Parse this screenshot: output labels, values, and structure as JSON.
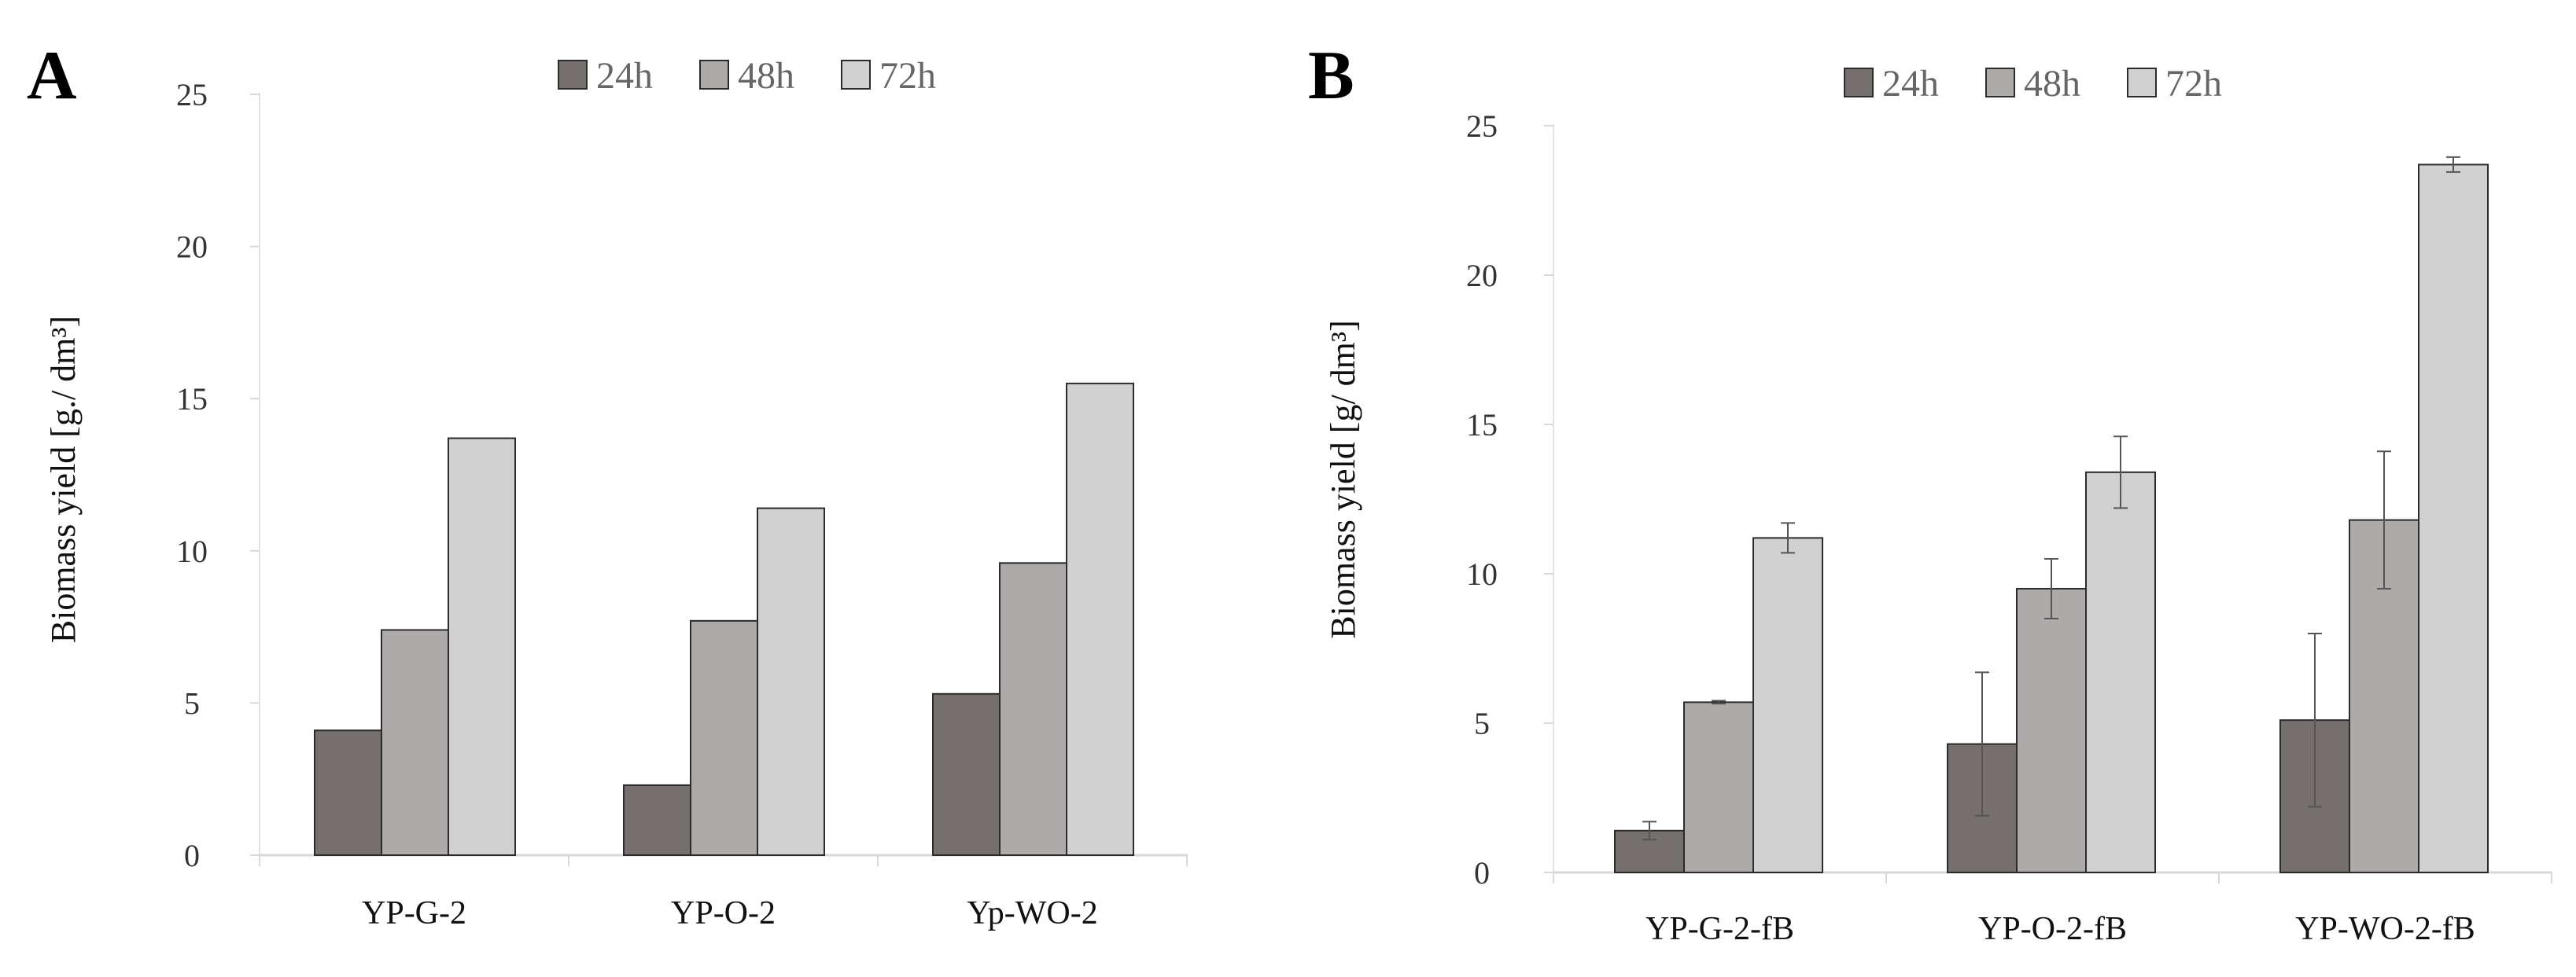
{
  "chart_data": [
    {
      "panel": "A",
      "type": "bar",
      "categories": [
        "YP-G-2",
        "YP-O-2",
        "Yp-WO-2"
      ],
      "series": [
        {
          "name": "24h",
          "color": "#756f6e",
          "values": [
            4.1,
            2.3,
            5.3
          ]
        },
        {
          "name": "48h",
          "color": "#adaaa9",
          "values": [
            7.4,
            7.7,
            9.6
          ]
        },
        {
          "name": "72h",
          "color": "#d2d1d2",
          "values": [
            13.7,
            11.4,
            15.5
          ]
        }
      ],
      "errors": null,
      "ylabel": "Biomass yield [g./ dm³]",
      "ylim": [
        0,
        25
      ],
      "yticks": [
        "0",
        "5",
        "10",
        "15",
        "20",
        "25"
      ]
    },
    {
      "panel": "B",
      "type": "bar",
      "categories": [
        "YP-G-2-fB",
        "YP-O-2-fB",
        "YP-WO-2-fB"
      ],
      "series": [
        {
          "name": "24h",
          "color": "#756f6e",
          "values": [
            1.4,
            4.3,
            5.1
          ],
          "errors": [
            0.3,
            2.4,
            2.9
          ]
        },
        {
          "name": "48h",
          "color": "#adaaa9",
          "values": [
            5.7,
            9.5,
            11.8
          ],
          "errors": [
            0.05,
            1.0,
            2.3
          ]
        },
        {
          "name": "72h",
          "color": "#d2d1d2",
          "values": [
            11.2,
            13.4,
            23.7
          ],
          "errors": [
            0.5,
            1.2,
            0.25
          ]
        }
      ],
      "ylabel": "Biomass yield [g/ dm³]",
      "ylim": [
        0,
        25
      ],
      "yticks": [
        "0",
        "5",
        "10",
        "15",
        "20",
        "25"
      ]
    }
  ]
}
